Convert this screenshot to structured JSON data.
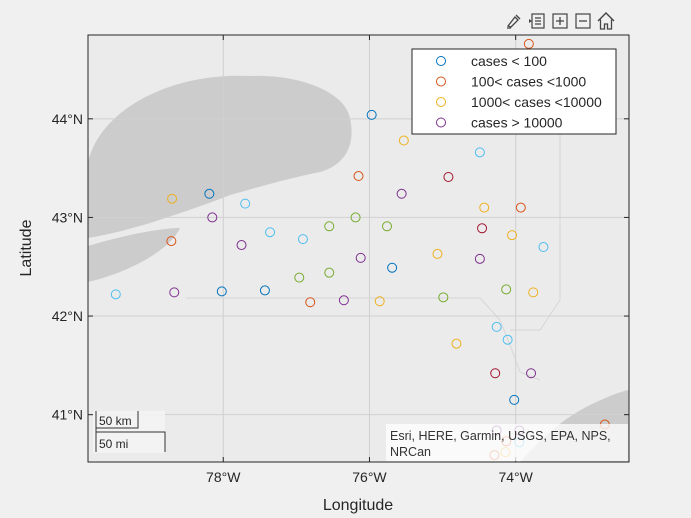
{
  "toolbar": {
    "buttons": [
      {
        "name": "brush-icon"
      },
      {
        "name": "datatip-icon"
      },
      {
        "name": "zoom-in-icon"
      },
      {
        "name": "zoom-out-icon"
      },
      {
        "name": "home-icon"
      }
    ]
  },
  "colors": {
    "cases < 100": "#0072BD",
    "100< cases <1000": "#D95319",
    "1000< cases <10000": "#EDB120",
    "cases > 10000": "#7E2F8E",
    "extra_green": "#77AC30",
    "extra_cyan": "#4DBEEE",
    "extra_red": "#A2142F"
  },
  "chart_data": {
    "type": "scatter",
    "map_background": true,
    "xlabel": "Longitude",
    "ylabel": "Latitude",
    "xlim": [
      -79.85,
      -72.45
    ],
    "ylim": [
      40.52,
      44.85
    ],
    "xticks": [
      {
        "value": -78,
        "label": "78°W"
      },
      {
        "value": -76,
        "label": "76°W"
      },
      {
        "value": -74,
        "label": "74°W"
      }
    ],
    "yticks": [
      {
        "value": 41,
        "label": "41°N"
      },
      {
        "value": 42,
        "label": "42°N"
      },
      {
        "value": 43,
        "label": "43°N"
      },
      {
        "value": 44,
        "label": "44°N"
      }
    ],
    "grid": true,
    "legend_position": "top-right",
    "legend": [
      {
        "label": " cases < 100",
        "color": "#0072BD"
      },
      {
        "label": "100< cases <1000",
        "color": "#D95319"
      },
      {
        "label": "1000< cases <10000",
        "color": "#EDB120"
      },
      {
        "label": "cases > 10000",
        "color": "#7E2F8E"
      }
    ],
    "scalebar": {
      "km_label": "50 km",
      "mi_label": "50 mi"
    },
    "attribution": "Esri, HERE, Garmin, USGS, EPA, NPS, NRCan",
    "points": [
      {
        "lon": -75.97,
        "lat": 44.04,
        "color": "#0072BD"
      },
      {
        "lon": -73.82,
        "lat": 44.76,
        "color": "#D95319"
      },
      {
        "lon": -75.53,
        "lat": 43.78,
        "color": "#EDB120"
      },
      {
        "lon": -74.49,
        "lat": 43.66,
        "color": "#4DBEEE"
      },
      {
        "lon": -76.15,
        "lat": 43.42,
        "color": "#D95319"
      },
      {
        "lon": -74.92,
        "lat": 43.41,
        "color": "#A2142F"
      },
      {
        "lon": -78.19,
        "lat": 43.24,
        "color": "#0072BD"
      },
      {
        "lon": -75.56,
        "lat": 43.24,
        "color": "#7E2F8E"
      },
      {
        "lon": -78.7,
        "lat": 43.19,
        "color": "#EDB120"
      },
      {
        "lon": -77.7,
        "lat": 43.14,
        "color": "#4DBEEE"
      },
      {
        "lon": -74.43,
        "lat": 43.1,
        "color": "#EDB120"
      },
      {
        "lon": -73.93,
        "lat": 43.1,
        "color": "#D95319"
      },
      {
        "lon": -78.15,
        "lat": 43.0,
        "color": "#7E2F8E"
      },
      {
        "lon": -76.19,
        "lat": 43.0,
        "color": "#77AC30"
      },
      {
        "lon": -76.55,
        "lat": 42.91,
        "color": "#77AC30"
      },
      {
        "lon": -75.76,
        "lat": 42.91,
        "color": "#77AC30"
      },
      {
        "lon": -74.46,
        "lat": 42.89,
        "color": "#A2142F"
      },
      {
        "lon": -77.36,
        "lat": 42.85,
        "color": "#4DBEEE"
      },
      {
        "lon": -74.05,
        "lat": 42.82,
        "color": "#EDB120"
      },
      {
        "lon": -76.91,
        "lat": 42.78,
        "color": "#4DBEEE"
      },
      {
        "lon": -78.71,
        "lat": 42.76,
        "color": "#D95319"
      },
      {
        "lon": -77.75,
        "lat": 42.72,
        "color": "#7E2F8E"
      },
      {
        "lon": -73.62,
        "lat": 42.7,
        "color": "#4DBEEE"
      },
      {
        "lon": -75.07,
        "lat": 42.63,
        "color": "#EDB120"
      },
      {
        "lon": -76.12,
        "lat": 42.59,
        "color": "#7E2F8E"
      },
      {
        "lon": -74.49,
        "lat": 42.58,
        "color": "#7E2F8E"
      },
      {
        "lon": -75.69,
        "lat": 42.49,
        "color": "#0072BD"
      },
      {
        "lon": -76.55,
        "lat": 42.44,
        "color": "#77AC30"
      },
      {
        "lon": -76.96,
        "lat": 42.39,
        "color": "#77AC30"
      },
      {
        "lon": -74.13,
        "lat": 42.27,
        "color": "#77AC30"
      },
      {
        "lon": -77.43,
        "lat": 42.26,
        "color": "#0072BD"
      },
      {
        "lon": -78.02,
        "lat": 42.25,
        "color": "#0072BD"
      },
      {
        "lon": -78.67,
        "lat": 42.24,
        "color": "#7E2F8E"
      },
      {
        "lon": -73.76,
        "lat": 42.24,
        "color": "#EDB120"
      },
      {
        "lon": -79.47,
        "lat": 42.22,
        "color": "#4DBEEE"
      },
      {
        "lon": -74.99,
        "lat": 42.19,
        "color": "#77AC30"
      },
      {
        "lon": -76.35,
        "lat": 42.16,
        "color": "#7E2F8E"
      },
      {
        "lon": -75.86,
        "lat": 42.15,
        "color": "#EDB120"
      },
      {
        "lon": -76.81,
        "lat": 42.14,
        "color": "#D95319"
      },
      {
        "lon": -74.26,
        "lat": 41.89,
        "color": "#4DBEEE"
      },
      {
        "lon": -74.11,
        "lat": 41.76,
        "color": "#4DBEEE"
      },
      {
        "lon": -74.81,
        "lat": 41.72,
        "color": "#EDB120"
      },
      {
        "lon": -74.28,
        "lat": 41.42,
        "color": "#A2142F"
      },
      {
        "lon": -73.79,
        "lat": 41.42,
        "color": "#7E2F8E"
      },
      {
        "lon": -74.02,
        "lat": 41.15,
        "color": "#0072BD"
      },
      {
        "lon": -74.26,
        "lat": 40.84,
        "color": "#7E2F8E"
      },
      {
        "lon": -73.95,
        "lat": 40.84,
        "color": "#7E2F8E"
      },
      {
        "lon": -74.13,
        "lat": 40.73,
        "color": "#D95319"
      },
      {
        "lon": -73.95,
        "lat": 40.72,
        "color": "#4DBEEE"
      },
      {
        "lon": -74.14,
        "lat": 40.62,
        "color": "#EDB120"
      },
      {
        "lon": -74.29,
        "lat": 40.59,
        "color": "#D95319"
      },
      {
        "lon": -72.78,
        "lat": 40.9,
        "color": "#D95319"
      }
    ]
  }
}
